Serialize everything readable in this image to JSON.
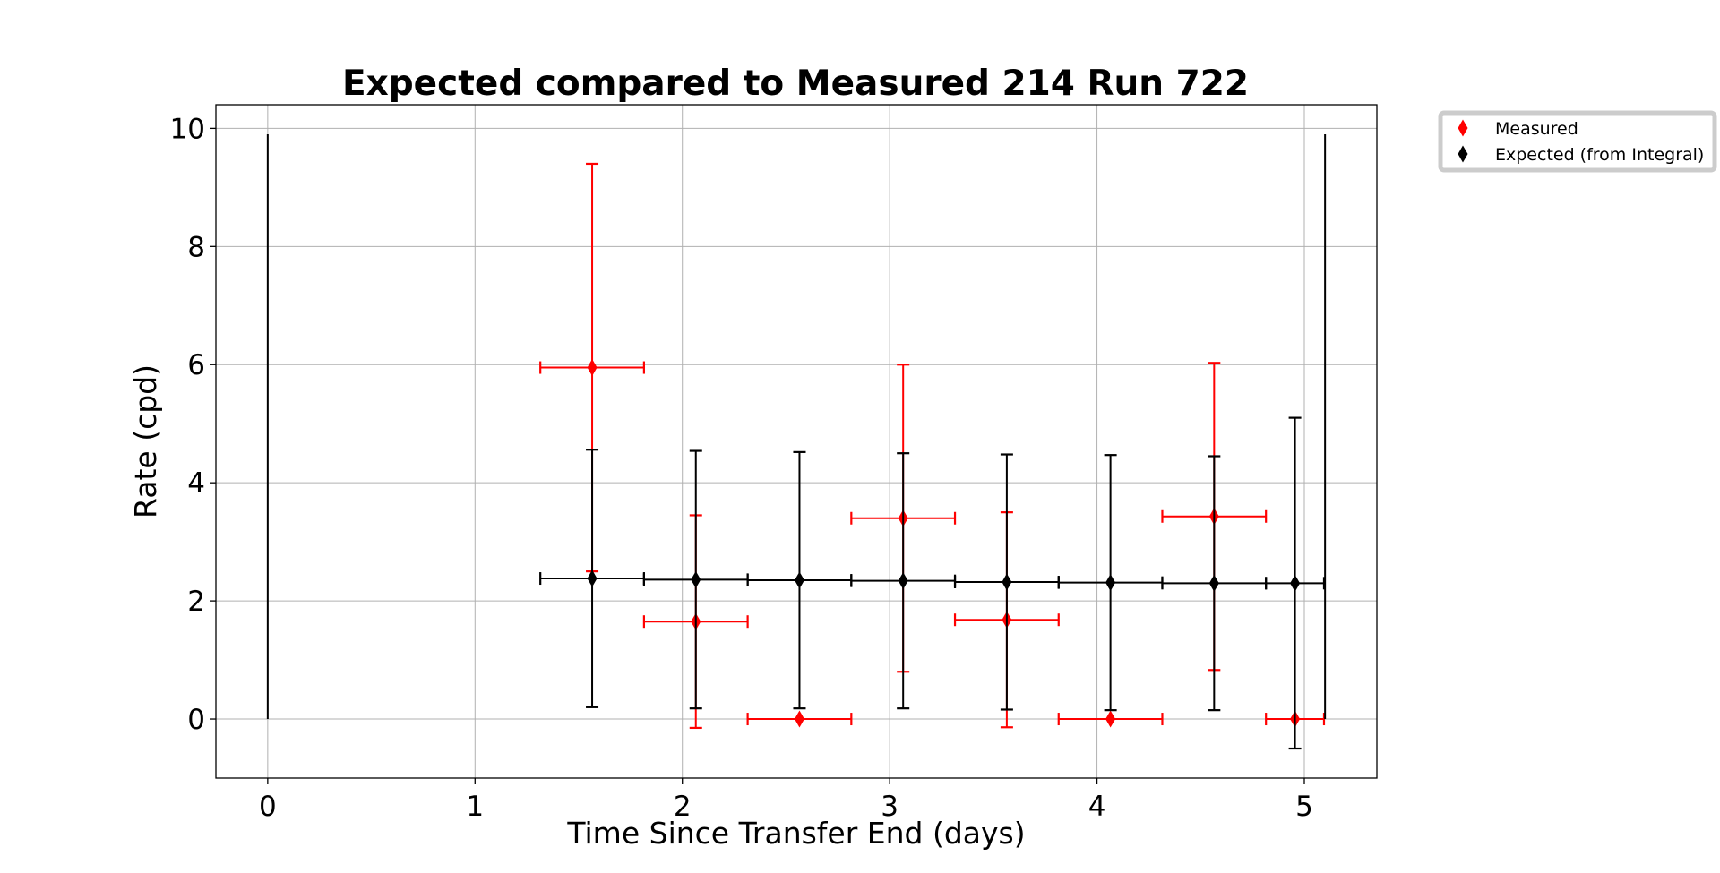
{
  "chart_data": {
    "type": "scatter",
    "title": "Expected compared to Measured 214 Run 722",
    "xlabel": "Time Since Transfer End (days)",
    "ylabel": "Rate (cpd)",
    "xlim": [
      -0.25,
      5.35
    ],
    "ylim": [
      -1.0,
      10.4
    ],
    "xticks": [
      0,
      1,
      2,
      3,
      4,
      5
    ],
    "yticks": [
      0,
      2,
      4,
      6,
      8,
      10
    ],
    "grid": true,
    "legend_position": "outside top-right",
    "series": [
      {
        "name": "Measured",
        "color": "#ff0000",
        "marker": "thin-diamond",
        "points": [
          {
            "x": 1.565,
            "y": 5.95,
            "xerr": 0.25,
            "yerr_low": 3.45,
            "yerr_high": 3.45
          },
          {
            "x": 2.065,
            "y": 1.65,
            "xerr": 0.25,
            "yerr_low": 1.8,
            "yerr_high": 1.8
          },
          {
            "x": 2.565,
            "y": 0.0,
            "xerr": 0.25,
            "yerr_low": 0.0,
            "yerr_high": 0.0
          },
          {
            "x": 3.065,
            "y": 3.4,
            "xerr": 0.25,
            "yerr_low": 2.6,
            "yerr_high": 2.6
          },
          {
            "x": 3.565,
            "y": 1.68,
            "xerr": 0.25,
            "yerr_low": 1.82,
            "yerr_high": 1.82
          },
          {
            "x": 4.065,
            "y": 0.0,
            "xerr": 0.25,
            "yerr_low": 0.0,
            "yerr_high": 0.0
          },
          {
            "x": 4.565,
            "y": 3.43,
            "xerr": 0.25,
            "yerr_low": 2.6,
            "yerr_high": 2.6
          },
          {
            "x": 4.955,
            "y": 0.0,
            "xerr": 0.14,
            "yerr_low": 0.0,
            "yerr_high": 0.0
          }
        ]
      },
      {
        "name": "Expected (from Integral)",
        "color": "#000000",
        "marker": "thin-diamond",
        "points": [
          {
            "x": 0.0,
            "y": 0.0,
            "xerr": 0.0,
            "yerr_low": 0.0,
            "yerr_high": 9.9,
            "caps": false,
            "marker": false
          },
          {
            "x": 1.565,
            "y": 2.38,
            "xerr": 0.25,
            "yerr_low": 2.18,
            "yerr_high": 2.18
          },
          {
            "x": 2.065,
            "y": 2.36,
            "xerr": 0.25,
            "yerr_low": 2.18,
            "yerr_high": 2.18
          },
          {
            "x": 2.565,
            "y": 2.35,
            "xerr": 0.25,
            "yerr_low": 2.17,
            "yerr_high": 2.17
          },
          {
            "x": 3.065,
            "y": 2.34,
            "xerr": 0.25,
            "yerr_low": 2.16,
            "yerr_high": 2.16
          },
          {
            "x": 3.565,
            "y": 2.32,
            "xerr": 0.25,
            "yerr_low": 2.16,
            "yerr_high": 2.16
          },
          {
            "x": 4.065,
            "y": 2.31,
            "xerr": 0.25,
            "yerr_low": 2.16,
            "yerr_high": 2.16
          },
          {
            "x": 4.565,
            "y": 2.3,
            "xerr": 0.25,
            "yerr_low": 2.15,
            "yerr_high": 2.15
          },
          {
            "x": 4.955,
            "y": 2.3,
            "xerr": 0.14,
            "yerr_low": 2.8,
            "yerr_high": 2.8
          },
          {
            "x": 5.1,
            "y": 0.0,
            "xerr": 0.0,
            "yerr_low": 0.0,
            "yerr_high": 9.9,
            "caps": false,
            "marker": false
          }
        ]
      }
    ]
  }
}
